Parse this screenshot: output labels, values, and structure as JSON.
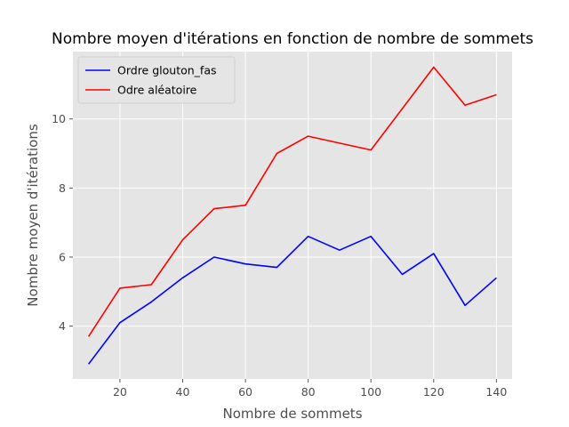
{
  "chart_data": {
    "type": "line",
    "title": "Nombre moyen d'itérations en fonction de nombre de sommets",
    "xlabel": "Nombre de sommets",
    "ylabel": "Nombre moyen d'itérations",
    "xlim": [
      5,
      145
    ],
    "ylim": [
      2.47,
      11.95
    ],
    "xticks": [
      20,
      40,
      60,
      80,
      100,
      120,
      140
    ],
    "yticks": [
      4,
      6,
      8,
      10
    ],
    "grid": true,
    "legend_position": "top-left",
    "x": [
      10,
      20,
      30,
      40,
      50,
      60,
      70,
      80,
      90,
      100,
      110,
      120,
      130,
      140
    ],
    "series": [
      {
        "name": "Ordre glouton_fas",
        "color": "#0000ff",
        "values": [
          2.9,
          4.1,
          4.7,
          5.4,
          6.0,
          5.8,
          5.7,
          6.6,
          6.2,
          6.6,
          5.5,
          6.1,
          4.6,
          5.4
        ]
      },
      {
        "name": "Odre aléatoire",
        "color": "#ff0000",
        "values": [
          3.7,
          5.1,
          5.2,
          6.5,
          7.4,
          7.5,
          9.0,
          9.5,
          9.3,
          9.1,
          10.3,
          11.5,
          10.4,
          10.7
        ]
      }
    ]
  }
}
